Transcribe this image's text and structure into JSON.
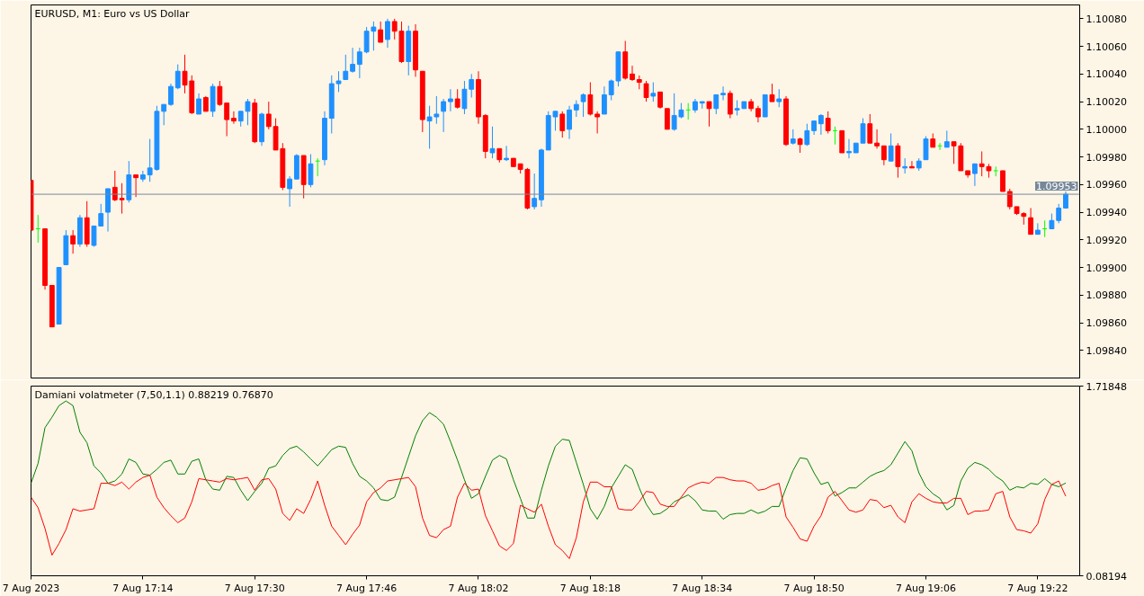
{
  "chart_data": [
    {
      "type": "candlestick",
      "title": "EURUSD, M1:  Euro vs US Dollar",
      "tick_labels": "y",
      "x": [
        "2023-08-07T16:58",
        "2023-08-07T16:59",
        "2023-08-07T17:00",
        "2023-08-07T17:01",
        "2023-08-07T17:02",
        "2023-08-07T17:03",
        "2023-08-07T17:04",
        "2023-08-07T17:05",
        "2023-08-07T17:06",
        "2023-08-07T17:07",
        "2023-08-07T17:08",
        "2023-08-07T17:09",
        "2023-08-07T17:10",
        "2023-08-07T17:11",
        "2023-08-07T17:12",
        "2023-08-07T17:13",
        "2023-08-07T17:14",
        "2023-08-07T17:15",
        "2023-08-07T17:16",
        "2023-08-07T17:17",
        "2023-08-07T17:18",
        "2023-08-07T17:19",
        "2023-08-07T17:20",
        "2023-08-07T17:21",
        "2023-08-07T17:22",
        "2023-08-07T17:23",
        "2023-08-07T17:24",
        "2023-08-07T17:25",
        "2023-08-07T17:26",
        "2023-08-07T17:27",
        "2023-08-07T17:28",
        "2023-08-07T17:29",
        "2023-08-07T17:30",
        "2023-08-07T17:31",
        "2023-08-07T17:32",
        "2023-08-07T17:33",
        "2023-08-07T17:34",
        "2023-08-07T17:35",
        "2023-08-07T17:36",
        "2023-08-07T17:37",
        "2023-08-07T17:38",
        "2023-08-07T17:39",
        "2023-08-07T17:40",
        "2023-08-07T17:41",
        "2023-08-07T17:42",
        "2023-08-07T17:43",
        "2023-08-07T17:44",
        "2023-08-07T17:45",
        "2023-08-07T17:46",
        "2023-08-07T17:47",
        "2023-08-07T17:48",
        "2023-08-07T17:49",
        "2023-08-07T17:50",
        "2023-08-07T17:51",
        "2023-08-07T17:52",
        "2023-08-07T17:53",
        "2023-08-07T17:54",
        "2023-08-07T17:55",
        "2023-08-07T17:56",
        "2023-08-07T17:57",
        "2023-08-07T17:58",
        "2023-08-07T17:59",
        "2023-08-07T18:00",
        "2023-08-07T18:01",
        "2023-08-07T18:02",
        "2023-08-07T18:03",
        "2023-08-07T18:04",
        "2023-08-07T18:05",
        "2023-08-07T18:06",
        "2023-08-07T18:07",
        "2023-08-07T18:08",
        "2023-08-07T18:09",
        "2023-08-07T18:10",
        "2023-08-07T18:11",
        "2023-08-07T18:12",
        "2023-08-07T18:13",
        "2023-08-07T18:14",
        "2023-08-07T18:15",
        "2023-08-07T18:16",
        "2023-08-07T18:17",
        "2023-08-07T18:18",
        "2023-08-07T18:19",
        "2023-08-07T18:20",
        "2023-08-07T18:21",
        "2023-08-07T18:22",
        "2023-08-07T18:23",
        "2023-08-07T18:24",
        "2023-08-07T18:25",
        "2023-08-07T18:26",
        "2023-08-07T18:27",
        "2023-08-07T18:28",
        "2023-08-07T18:29",
        "2023-08-07T18:30",
        "2023-08-07T18:31",
        "2023-08-07T18:32",
        "2023-08-07T18:33",
        "2023-08-07T18:34",
        "2023-08-07T18:35",
        "2023-08-07T18:36",
        "2023-08-07T18:37",
        "2023-08-07T18:38",
        "2023-08-07T18:39",
        "2023-08-07T18:40",
        "2023-08-07T18:41",
        "2023-08-07T18:42",
        "2023-08-07T18:43",
        "2023-08-07T18:44",
        "2023-08-07T18:45",
        "2023-08-07T18:46",
        "2023-08-07T18:47",
        "2023-08-07T18:48",
        "2023-08-07T18:49",
        "2023-08-07T18:50",
        "2023-08-07T18:51",
        "2023-08-07T18:52",
        "2023-08-07T18:53",
        "2023-08-07T18:54",
        "2023-08-07T18:55",
        "2023-08-07T18:56",
        "2023-08-07T18:57",
        "2023-08-07T18:58",
        "2023-08-07T18:59",
        "2023-08-07T19:00",
        "2023-08-07T19:01",
        "2023-08-07T19:02",
        "2023-08-07T19:03",
        "2023-08-07T19:04",
        "2023-08-07T19:05",
        "2023-08-07T19:06",
        "2023-08-07T19:07",
        "2023-08-07T19:08",
        "2023-08-07T19:09",
        "2023-08-07T19:10",
        "2023-08-07T19:11",
        "2023-08-07T19:12",
        "2023-08-07T19:13",
        "2023-08-07T19:14",
        "2023-08-07T19:15",
        "2023-08-07T19:16",
        "2023-08-07T19:17",
        "2023-08-07T19:18",
        "2023-08-07T19:19",
        "2023-08-07T19:20",
        "2023-08-07T19:21",
        "2023-08-07T19:22",
        "2023-08-07T19:23",
        "2023-08-07T19:24",
        "2023-08-07T19:25",
        "2023-08-07T19:26"
      ],
      "ohlc": [
        [
          1.09963,
          1.09963,
          1.09927,
          1.09927
        ],
        [
          1.09928,
          1.09938,
          1.09918,
          1.09928
        ],
        [
          1.09928,
          1.09928,
          1.09884,
          1.09887
        ],
        [
          1.09887,
          1.09887,
          1.09857,
          1.09857
        ],
        [
          1.09859,
          1.099,
          1.09859,
          1.099
        ],
        [
          1.09902,
          1.09927,
          1.09902,
          1.09923
        ],
        [
          1.09923,
          1.09927,
          1.0991,
          1.09917
        ],
        [
          1.09917,
          1.09938,
          1.09915,
          1.09936
        ],
        [
          1.09936,
          1.09948,
          1.09915,
          1.09917
        ],
        [
          1.09916,
          1.0993,
          1.09915,
          1.0993
        ],
        [
          1.0993,
          1.09946,
          1.0993,
          1.09939
        ],
        [
          1.0994,
          1.09957,
          1.09926,
          1.09957
        ],
        [
          1.09958,
          1.0997,
          1.09948,
          1.09949
        ],
        [
          1.0995,
          1.09961,
          1.09939,
          1.09949
        ],
        [
          1.09949,
          1.09977,
          1.09947,
          1.09967
        ],
        [
          1.09967,
          1.09967,
          1.09951,
          1.09965
        ],
        [
          1.09964,
          1.0997,
          1.09962,
          1.09967
        ],
        [
          1.09967,
          1.09993,
          1.09962,
          1.09972
        ],
        [
          1.09971,
          1.10017,
          1.0997,
          1.10013
        ],
        [
          1.10013,
          1.10018,
          1.10003,
          1.10018
        ],
        [
          1.10018,
          1.10033,
          1.10017,
          1.10031
        ],
        [
          1.1003,
          1.10047,
          1.10029,
          1.10042
        ],
        [
          1.10042,
          1.10054,
          1.10026,
          1.10032
        ],
        [
          1.10035,
          1.10039,
          1.10011,
          1.10012
        ],
        [
          1.10011,
          1.10026,
          1.10011,
          1.10022
        ],
        [
          1.10023,
          1.10024,
          1.10013,
          1.10013
        ],
        [
          1.10013,
          1.10033,
          1.10009,
          1.10031
        ],
        [
          1.10031,
          1.10035,
          1.10017,
          1.10018
        ],
        [
          1.10019,
          1.10019,
          1.09995,
          1.10007
        ],
        [
          1.10008,
          1.10013,
          1.10004,
          1.10006
        ],
        [
          1.10006,
          1.10013,
          1.10002,
          1.10013
        ],
        [
          1.10013,
          1.10022,
          1.10003,
          1.1002
        ],
        [
          1.10019,
          1.10022,
          1.0999,
          1.09991
        ],
        [
          1.09991,
          1.10012,
          1.09988,
          1.10011
        ],
        [
          1.10011,
          1.1002,
          1.1,
          1.10002
        ],
        [
          1.10002,
          1.10008,
          1.09985,
          1.09985
        ],
        [
          1.09986,
          1.0999,
          1.09956,
          1.09958
        ],
        [
          1.09957,
          1.09966,
          1.09944,
          1.09964
        ],
        [
          1.09964,
          1.09982,
          1.09964,
          1.09981
        ],
        [
          1.09981,
          1.09981,
          1.0995,
          1.0996
        ],
        [
          1.0996,
          1.09982,
          1.09958,
          1.09975
        ],
        [
          1.09977,
          1.09979,
          1.09966,
          1.09977
        ],
        [
          1.09978,
          1.10013,
          1.09974,
          1.10008
        ],
        [
          1.10008,
          1.10039,
          1.09997,
          1.10033
        ],
        [
          1.10033,
          1.10042,
          1.10027,
          1.10035
        ],
        [
          1.10036,
          1.10054,
          1.10036,
          1.10042
        ],
        [
          1.10042,
          1.10059,
          1.10041,
          1.10047
        ],
        [
          1.10047,
          1.10059,
          1.10037,
          1.10056
        ],
        [
          1.10056,
          1.10074,
          1.10055,
          1.10071
        ],
        [
          1.10071,
          1.10078,
          1.10057,
          1.10074
        ],
        [
          1.10072,
          1.10078,
          1.10063,
          1.10063
        ],
        [
          1.10065,
          1.1008,
          1.10059,
          1.10078
        ],
        [
          1.10078,
          1.1008,
          1.10065,
          1.10071
        ],
        [
          1.10071,
          1.10078,
          1.10048,
          1.10049
        ],
        [
          1.10049,
          1.10075,
          1.10039,
          1.10071
        ],
        [
          1.10071,
          1.10076,
          1.10038,
          1.10043
        ],
        [
          1.10042,
          1.10042,
          1.09998,
          1.10007
        ],
        [
          1.10006,
          1.10017,
          1.09986,
          1.10009
        ],
        [
          1.10009,
          1.10024,
          1.10004,
          1.10011
        ],
        [
          1.10013,
          1.10022,
          1.09998,
          1.1002
        ],
        [
          1.1002,
          1.10029,
          1.10013,
          1.10022
        ],
        [
          1.10022,
          1.10029,
          1.10015,
          1.10016
        ],
        [
          1.10015,
          1.10035,
          1.10011,
          1.10029
        ],
        [
          1.10029,
          1.1004,
          1.10023,
          1.10036
        ],
        [
          1.10036,
          1.10042,
          1.10004,
          1.10009
        ],
        [
          1.1001,
          1.10011,
          1.09979,
          1.09984
        ],
        [
          1.09983,
          1.10002,
          1.09979,
          1.09986
        ],
        [
          1.09986,
          1.09986,
          1.09976,
          1.09978
        ],
        [
          1.09978,
          1.09988,
          1.09977,
          1.09979
        ],
        [
          1.09979,
          1.09979,
          1.09973,
          1.09973
        ],
        [
          1.09975,
          1.09975,
          1.09968,
          1.09971
        ],
        [
          1.09971,
          1.09972,
          1.09942,
          1.09943
        ],
        [
          1.09944,
          1.09968,
          1.09942,
          1.0995
        ],
        [
          1.09949,
          1.09986,
          1.09944,
          1.09985
        ],
        [
          1.09985,
          1.10013,
          1.09985,
          1.1001
        ],
        [
          1.10009,
          1.10013,
          1.09999,
          1.10013
        ],
        [
          1.10011,
          1.10013,
          1.09994,
          1.09999
        ],
        [
          1.1,
          1.10017,
          1.09993,
          1.10014
        ],
        [
          1.10014,
          1.10021,
          1.10009,
          1.10018
        ],
        [
          1.1002,
          1.10026,
          1.10009,
          1.10025
        ],
        [
          1.10025,
          1.10034,
          1.1001,
          1.10011
        ],
        [
          1.10011,
          1.10013,
          1.09997,
          1.10009
        ],
        [
          1.10011,
          1.10031,
          1.10011,
          1.10025
        ],
        [
          1.10025,
          1.10036,
          1.10021,
          1.10035
        ],
        [
          1.10035,
          1.10056,
          1.10031,
          1.10056
        ],
        [
          1.10056,
          1.10064,
          1.10036,
          1.10037
        ],
        [
          1.1004,
          1.10046,
          1.10035,
          1.10036
        ],
        [
          1.10036,
          1.10039,
          1.10029,
          1.10034
        ],
        [
          1.10033,
          1.10035,
          1.1002,
          1.10023
        ],
        [
          1.10024,
          1.10034,
          1.1002,
          1.10026
        ],
        [
          1.10027,
          1.10027,
          1.10015,
          1.10016
        ],
        [
          1.10015,
          1.10015,
          1.1,
          1.1
        ],
        [
          1.1,
          1.10026,
          1.09999,
          1.1001
        ],
        [
          1.10009,
          1.10019,
          1.10008,
          1.10014
        ],
        [
          1.10014,
          1.10019,
          1.10007,
          1.10014
        ],
        [
          1.10014,
          1.10022,
          1.10012,
          1.1002
        ],
        [
          1.10019,
          1.1002,
          1.10015,
          1.1002
        ],
        [
          1.1002,
          1.1002,
          1.10002,
          1.10015
        ],
        [
          1.10015,
          1.10025,
          1.10011,
          1.10025
        ],
        [
          1.10025,
          1.10031,
          1.10021,
          1.10026
        ],
        [
          1.10026,
          1.10028,
          1.10008,
          1.10011
        ],
        [
          1.10014,
          1.10021,
          1.1001,
          1.10015
        ],
        [
          1.10015,
          1.1002,
          1.10015,
          1.1002
        ],
        [
          1.1002,
          1.10022,
          1.10013,
          1.10015
        ],
        [
          1.10015,
          1.10017,
          1.10005,
          1.10009
        ],
        [
          1.10009,
          1.10025,
          1.10009,
          1.10025
        ],
        [
          1.10025,
          1.10033,
          1.1002,
          1.1002
        ],
        [
          1.1002,
          1.10029,
          1.10016,
          1.10022
        ],
        [
          1.10022,
          1.10024,
          1.09988,
          1.09989
        ],
        [
          1.0999,
          1.1,
          1.09989,
          1.09993
        ],
        [
          1.09993,
          1.09994,
          1.09983,
          1.09989
        ],
        [
          1.09989,
          1.10004,
          1.09988,
          1.09999
        ],
        [
          1.09999,
          1.10006,
          1.09996,
          1.10006
        ],
        [
          1.10004,
          1.10011,
          1.09996,
          1.1001
        ],
        [
          1.10008,
          1.10013,
          1.09997,
          1.09999
        ],
        [
          1.09999,
          1.10002,
          1.09989,
          1.09999
        ],
        [
          1.09999,
          1.09999,
          1.09983,
          1.09983
        ],
        [
          1.09983,
          1.09993,
          1.09979,
          1.09984
        ],
        [
          1.09983,
          1.0999,
          1.09983,
          1.0999
        ],
        [
          1.0999,
          1.10008,
          1.0999,
          1.10004
        ],
        [
          1.10004,
          1.10011,
          1.0999,
          1.0999
        ],
        [
          1.0999,
          1.1,
          1.09986,
          1.09988
        ],
        [
          1.09988,
          1.09988,
          1.09974,
          1.09978
        ],
        [
          1.09977,
          1.09997,
          1.09977,
          1.09988
        ],
        [
          1.09988,
          1.0999,
          1.09965,
          1.09973
        ],
        [
          1.09972,
          1.09979,
          1.09968,
          1.09973
        ],
        [
          1.09973,
          1.09977,
          1.09972,
          1.09972
        ],
        [
          1.09972,
          1.09979,
          1.0997,
          1.09977
        ],
        [
          1.09978,
          1.09995,
          1.09978,
          1.09993
        ],
        [
          1.09993,
          1.09997,
          1.09987,
          1.09987
        ],
        [
          1.09988,
          1.0999,
          1.09985,
          1.09988
        ],
        [
          1.09987,
          1.09999,
          1.09987,
          1.09991
        ],
        [
          1.09991,
          1.09991,
          1.09975,
          1.09988
        ],
        [
          1.09988,
          1.0999,
          1.0997,
          1.0997
        ],
        [
          1.0997,
          1.0997,
          1.09965,
          1.09967
        ],
        [
          1.09968,
          1.09975,
          1.09959,
          1.09975
        ],
        [
          1.09975,
          1.09984,
          1.09966,
          1.09973
        ],
        [
          1.09973,
          1.09975,
          1.09965,
          1.0997
        ],
        [
          1.0997,
          1.09973,
          1.09966,
          1.0997
        ],
        [
          1.0997,
          1.0997,
          1.09955,
          1.09955
        ],
        [
          1.09955,
          1.09957,
          1.09942,
          1.09944
        ],
        [
          1.09944,
          1.09944,
          1.09938,
          1.09939
        ],
        [
          1.09939,
          1.0994,
          1.09931,
          1.09937
        ],
        [
          1.09936,
          1.09943,
          1.09924,
          1.09924
        ],
        [
          1.09924,
          1.09932,
          1.09924,
          1.09927
        ],
        [
          1.09928,
          1.09934,
          1.09922,
          1.09928
        ],
        [
          1.09928,
          1.09939,
          1.09928,
          1.09934
        ],
        [
          1.09934,
          1.09946,
          1.09932,
          1.09943
        ],
        [
          1.09943,
          1.09955,
          1.09943,
          1.09953
        ]
      ],
      "colors": [
        "#ff0000",
        "#00ff00",
        "#ff0000",
        "#ff0000",
        "#1e90ff",
        "#1e90ff",
        "#ff0000",
        "#1e90ff",
        "#ff0000",
        "#1e90ff",
        "#1e90ff",
        "#1e90ff",
        "#ff0000",
        "#ff0000",
        "#1e90ff",
        "#ff0000",
        "#1e90ff",
        "#1e90ff",
        "#1e90ff",
        "#1e90ff",
        "#1e90ff",
        "#1e90ff",
        "#ff0000",
        "#ff0000",
        "#1e90ff",
        "#ff0000",
        "#1e90ff",
        "#ff0000",
        "#ff0000",
        "#ff0000",
        "#1e90ff",
        "#1e90ff",
        "#ff0000",
        "#1e90ff",
        "#ff0000",
        "#ff0000",
        "#ff0000",
        "#1e90ff",
        "#1e90ff",
        "#ff0000",
        "#1e90ff",
        "#00ff00",
        "#1e90ff",
        "#1e90ff",
        "#1e90ff",
        "#1e90ff",
        "#1e90ff",
        "#1e90ff",
        "#1e90ff",
        "#1e90ff",
        "#ff0000",
        "#1e90ff",
        "#ff0000",
        "#ff0000",
        "#1e90ff",
        "#ff0000",
        "#ff0000",
        "#1e90ff",
        "#1e90ff",
        "#1e90ff",
        "#1e90ff",
        "#ff0000",
        "#1e90ff",
        "#1e90ff",
        "#ff0000",
        "#ff0000",
        "#1e90ff",
        "#ff0000",
        "#1e90ff",
        "#ff0000",
        "#ff0000",
        "#ff0000",
        "#1e90ff",
        "#1e90ff",
        "#1e90ff",
        "#1e90ff",
        "#ff0000",
        "#1e90ff",
        "#1e90ff",
        "#1e90ff",
        "#ff0000",
        "#ff0000",
        "#1e90ff",
        "#1e90ff",
        "#1e90ff",
        "#ff0000",
        "#ff0000",
        "#ff0000",
        "#ff0000",
        "#1e90ff",
        "#ff0000",
        "#ff0000",
        "#1e90ff",
        "#1e90ff",
        "#00ff00",
        "#1e90ff",
        "#1e90ff",
        "#ff0000",
        "#1e90ff",
        "#1e90ff",
        "#ff0000",
        "#1e90ff",
        "#1e90ff",
        "#ff0000",
        "#ff0000",
        "#1e90ff",
        "#ff0000",
        "#1e90ff",
        "#ff0000",
        "#1e90ff",
        "#ff0000",
        "#1e90ff",
        "#1e90ff",
        "#1e90ff",
        "#ff0000",
        "#00ff00",
        "#ff0000",
        "#1e90ff",
        "#1e90ff",
        "#1e90ff",
        "#ff0000",
        "#ff0000",
        "#ff0000",
        "#1e90ff",
        "#ff0000",
        "#1e90ff",
        "#ff0000",
        "#1e90ff",
        "#1e90ff",
        "#ff0000",
        "#00ff00",
        "#1e90ff",
        "#ff0000",
        "#ff0000",
        "#ff0000",
        "#1e90ff",
        "#ff0000",
        "#ff0000",
        "#00ff00",
        "#ff0000",
        "#ff0000",
        "#ff0000",
        "#ff0000",
        "#ff0000",
        "#1e90ff",
        "#00ff00",
        "#1e90ff",
        "#1e90ff",
        "#1e90ff"
      ],
      "xlim": [
        "2023-08-07T16:58",
        "2023-08-07T19:28"
      ],
      "ylim": [
        1.0982,
        1.1009
      ],
      "yticks": [
        {
          "value": 1.0984,
          "label": "1.09840"
        },
        {
          "value": 1.0986,
          "label": "1.09860"
        },
        {
          "value": 1.0988,
          "label": "1.09880"
        },
        {
          "value": 1.099,
          "label": "1.09900"
        },
        {
          "value": 1.0992,
          "label": "1.09920"
        },
        {
          "value": 1.0994,
          "label": "1.09940"
        },
        {
          "value": 1.0996,
          "label": "1.09960"
        },
        {
          "value": 1.0998,
          "label": "1.09980"
        },
        {
          "value": 1.1,
          "label": "1.10000"
        },
        {
          "value": 1.1002,
          "label": "1.10020"
        },
        {
          "value": 1.1004,
          "label": "1.10040"
        },
        {
          "value": 1.1006,
          "label": "1.10060"
        },
        {
          "value": 1.1008,
          "label": "1.10080"
        }
      ],
      "ref_lines": [
        {
          "axis": "y",
          "value": 1.09953,
          "label": "1.09953",
          "color": "#778899"
        }
      ]
    },
    {
      "type": "line",
      "title": "Damiani volatmeter (7,50,1.1) 0.88219 0.76870",
      "x": [
        "2023-08-07T16:58",
        "2023-08-07T16:59",
        "2023-08-07T17:00",
        "2023-08-07T17:01",
        "2023-08-07T17:02",
        "2023-08-07T17:03",
        "2023-08-07T17:04",
        "2023-08-07T17:05",
        "2023-08-07T17:06",
        "2023-08-07T17:07",
        "2023-08-07T17:08",
        "2023-08-07T17:09",
        "2023-08-07T17:10",
        "2023-08-07T17:11",
        "2023-08-07T17:12",
        "2023-08-07T17:13",
        "2023-08-07T17:14",
        "2023-08-07T17:15",
        "2023-08-07T17:16",
        "2023-08-07T17:17",
        "2023-08-07T17:18",
        "2023-08-07T17:19",
        "2023-08-07T17:20",
        "2023-08-07T17:21",
        "2023-08-07T17:22",
        "2023-08-07T17:23",
        "2023-08-07T17:24",
        "2023-08-07T17:25",
        "2023-08-07T17:26",
        "2023-08-07T17:27",
        "2023-08-07T17:28",
        "2023-08-07T17:29",
        "2023-08-07T17:30",
        "2023-08-07T17:31",
        "2023-08-07T17:32",
        "2023-08-07T17:33",
        "2023-08-07T17:34",
        "2023-08-07T17:35",
        "2023-08-07T17:36",
        "2023-08-07T17:37",
        "2023-08-07T17:38",
        "2023-08-07T17:39",
        "2023-08-07T17:40",
        "2023-08-07T17:41",
        "2023-08-07T17:42",
        "2023-08-07T17:43",
        "2023-08-07T17:44",
        "2023-08-07T17:45",
        "2023-08-07T17:46",
        "2023-08-07T17:47",
        "2023-08-07T17:48",
        "2023-08-07T17:49",
        "2023-08-07T17:50",
        "2023-08-07T17:51",
        "2023-08-07T17:52",
        "2023-08-07T17:53",
        "2023-08-07T17:54",
        "2023-08-07T17:55",
        "2023-08-07T17:56",
        "2023-08-07T17:57",
        "2023-08-07T17:58",
        "2023-08-07T17:59",
        "2023-08-07T18:00",
        "2023-08-07T18:01",
        "2023-08-07T18:02",
        "2023-08-07T18:03",
        "2023-08-07T18:04",
        "2023-08-07T18:05",
        "2023-08-07T18:06",
        "2023-08-07T18:07",
        "2023-08-07T18:08",
        "2023-08-07T18:09",
        "2023-08-07T18:10",
        "2023-08-07T18:11",
        "2023-08-07T18:12",
        "2023-08-07T18:13",
        "2023-08-07T18:14",
        "2023-08-07T18:15",
        "2023-08-07T18:16",
        "2023-08-07T18:17",
        "2023-08-07T18:18",
        "2023-08-07T18:19",
        "2023-08-07T18:20",
        "2023-08-07T18:21",
        "2023-08-07T18:22",
        "2023-08-07T18:23",
        "2023-08-07T18:24",
        "2023-08-07T18:25",
        "2023-08-07T18:26",
        "2023-08-07T18:27",
        "2023-08-07T18:28",
        "2023-08-07T18:29",
        "2023-08-07T18:30",
        "2023-08-07T18:31",
        "2023-08-07T18:32",
        "2023-08-07T18:33",
        "2023-08-07T18:34",
        "2023-08-07T18:35",
        "2023-08-07T18:36",
        "2023-08-07T18:37",
        "2023-08-07T18:38",
        "2023-08-07T18:39",
        "2023-08-07T18:40",
        "2023-08-07T18:41",
        "2023-08-07T18:42",
        "2023-08-07T18:43",
        "2023-08-07T18:44",
        "2023-08-07T18:45",
        "2023-08-07T18:46",
        "2023-08-07T18:47",
        "2023-08-07T18:48",
        "2023-08-07T18:49",
        "2023-08-07T18:50",
        "2023-08-07T18:51",
        "2023-08-07T18:52",
        "2023-08-07T18:53",
        "2023-08-07T18:54",
        "2023-08-07T18:55",
        "2023-08-07T18:56",
        "2023-08-07T18:57",
        "2023-08-07T18:58",
        "2023-08-07T18:59",
        "2023-08-07T19:00",
        "2023-08-07T19:01",
        "2023-08-07T19:02",
        "2023-08-07T19:03",
        "2023-08-07T19:04",
        "2023-08-07T19:05",
        "2023-08-07T19:06",
        "2023-08-07T19:07",
        "2023-08-07T19:08",
        "2023-08-07T19:09",
        "2023-08-07T19:10",
        "2023-08-07T19:11",
        "2023-08-07T19:12",
        "2023-08-07T19:13",
        "2023-08-07T19:14",
        "2023-08-07T19:15",
        "2023-08-07T19:16",
        "2023-08-07T19:17",
        "2023-08-07T19:18",
        "2023-08-07T19:19",
        "2023-08-07T19:20",
        "2023-08-07T19:21",
        "2023-08-07T19:22",
        "2023-08-07T19:23",
        "2023-08-07T19:24",
        "2023-08-07T19:25",
        "2023-08-07T19:26"
      ],
      "series": [
        {
          "color": "#008000",
          "values": [
            0.88,
            1.05,
            1.36,
            1.45,
            1.55,
            1.59,
            1.55,
            1.32,
            1.23,
            1.03,
            0.97,
            0.88,
            0.9,
            0.96,
            1.09,
            1.06,
            0.96,
            0.95,
            1.0,
            1.06,
            1.08,
            0.96,
            0.96,
            1.07,
            1.09,
            0.91,
            0.83,
            0.82,
            0.94,
            0.93,
            0.82,
            0.73,
            0.81,
            0.88,
            1.01,
            1.03,
            1.12,
            1.18,
            1.2,
            1.15,
            1.09,
            1.03,
            1.1,
            1.17,
            1.2,
            1.19,
            1.05,
            0.94,
            0.9,
            0.84,
            0.74,
            0.73,
            0.76,
            0.93,
            1.11,
            1.29,
            1.42,
            1.49,
            1.45,
            1.39,
            1.24,
            1.08,
            0.91,
            0.75,
            0.79,
            0.94,
            1.08,
            1.12,
            1.09,
            0.91,
            0.75,
            0.58,
            0.58,
            0.82,
            1.03,
            1.2,
            1.26,
            1.25,
            1.06,
            0.87,
            0.66,
            0.57,
            0.68,
            0.84,
            0.94,
            1.04,
            1.0,
            0.84,
            0.7,
            0.61,
            0.62,
            0.66,
            0.72,
            0.75,
            0.78,
            0.73,
            0.65,
            0.64,
            0.64,
            0.57,
            0.61,
            0.62,
            0.62,
            0.65,
            0.62,
            0.64,
            0.68,
            0.68,
            0.84,
            0.99,
            1.1,
            1.09,
            0.97,
            0.87,
            0.89,
            0.77,
            0.8,
            0.84,
            0.84,
            0.89,
            0.94,
            0.97,
            0.99,
            1.04,
            1.14,
            1.24,
            1.16,
            0.97,
            0.85,
            0.79,
            0.75,
            0.65,
            0.69,
            0.9,
            1.01,
            1.06,
            1.04,
            1.0,
            0.94,
            0.9,
            0.82,
            0.85,
            0.84,
            0.88,
            0.87,
            0.92,
            0.87,
            0.85,
            0.88219
          ]
        },
        {
          "color": "#ff0000",
          "values": [
            0.76,
            0.67,
            0.49,
            0.26,
            0.36,
            0.48,
            0.66,
            0.64,
            0.65,
            0.66,
            0.88,
            0.88,
            0.86,
            0.89,
            0.83,
            0.89,
            0.93,
            0.95,
            0.76,
            0.67,
            0.6,
            0.54,
            0.58,
            0.72,
            0.92,
            0.91,
            0.9,
            0.89,
            0.92,
            0.91,
            0.92,
            0.93,
            0.82,
            0.91,
            0.92,
            0.83,
            0.62,
            0.56,
            0.66,
            0.62,
            0.74,
            0.9,
            0.69,
            0.51,
            0.43,
            0.35,
            0.44,
            0.52,
            0.72,
            0.8,
            0.84,
            0.9,
            0.91,
            0.92,
            0.93,
            0.85,
            0.58,
            0.43,
            0.41,
            0.48,
            0.51,
            0.76,
            0.88,
            0.82,
            0.83,
            0.6,
            0.47,
            0.34,
            0.3,
            0.36,
            0.69,
            0.66,
            0.63,
            0.7,
            0.51,
            0.35,
            0.3,
            0.23,
            0.41,
            0.72,
            0.89,
            0.89,
            0.85,
            0.85,
            0.66,
            0.65,
            0.65,
            0.72,
            0.81,
            0.8,
            0.7,
            0.68,
            0.68,
            0.76,
            0.84,
            0.87,
            0.89,
            0.88,
            0.93,
            0.93,
            0.91,
            0.9,
            0.9,
            0.88,
            0.82,
            0.83,
            0.86,
            0.88,
            0.59,
            0.5,
            0.4,
            0.38,
            0.51,
            0.6,
            0.76,
            0.81,
            0.73,
            0.65,
            0.63,
            0.65,
            0.74,
            0.73,
            0.67,
            0.69,
            0.59,
            0.54,
            0.72,
            0.79,
            0.75,
            0.72,
            0.71,
            0.71,
            0.75,
            0.75,
            0.61,
            0.64,
            0.64,
            0.65,
            0.79,
            0.81,
            0.59,
            0.48,
            0.47,
            0.45,
            0.53,
            0.74,
            0.87,
            0.9,
            0.7687
          ]
        }
      ],
      "xlim": [
        "2023-08-07T16:58",
        "2023-08-07T19:28"
      ],
      "xticks": [
        {
          "value": "2023-08-07T16:58",
          "label": "7 Aug 2023"
        },
        {
          "value": "2023-08-07T17:14",
          "label": "7 Aug 17:14"
        },
        {
          "value": "2023-08-07T17:30",
          "label": "7 Aug 17:30"
        },
        {
          "value": "2023-08-07T17:46",
          "label": "7 Aug 17:46"
        },
        {
          "value": "2023-08-07T18:02",
          "label": "7 Aug 18:02"
        },
        {
          "value": "2023-08-07T18:18",
          "label": "7 Aug 18:18"
        },
        {
          "value": "2023-08-07T18:34",
          "label": "7 Aug 18:34"
        },
        {
          "value": "2023-08-07T18:50",
          "label": "7 Aug 18:50"
        },
        {
          "value": "2023-08-07T19:06",
          "label": "7 Aug 19:06"
        },
        {
          "value": "2023-08-07T19:22",
          "label": "7 Aug 19:22"
        }
      ],
      "ylim": [
        0.08194,
        1.71848
      ],
      "yticks": [
        {
          "value": 0.08194,
          "label": "0.08194"
        },
        {
          "value": 1.71848,
          "label": "1.71848"
        }
      ]
    }
  ]
}
